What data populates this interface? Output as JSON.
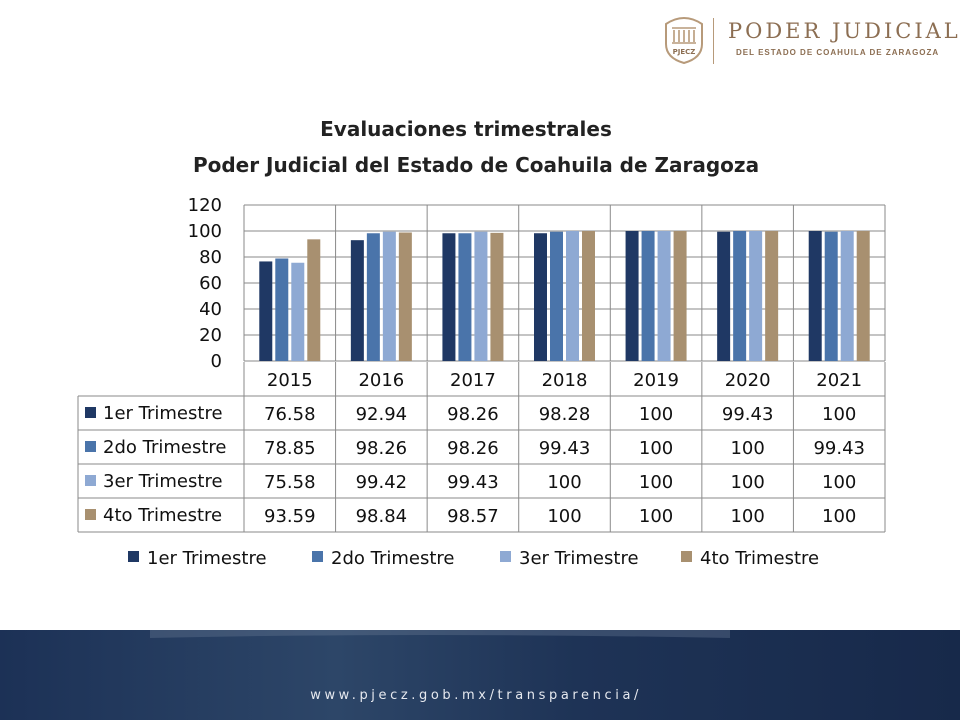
{
  "header": {
    "logo_seal_text": "PJECZ",
    "org_name": "PODER JUDICIAL",
    "org_subtitle": "DEL ESTADO DE COAHUILA DE ZARAGOZA"
  },
  "footer": {
    "url": "www.pjecz.gob.mx/transparencia/"
  },
  "colors": {
    "series": [
      "#1f3864",
      "#4a74aa",
      "#8ea9d3",
      "#a89070"
    ],
    "grid": "#888888",
    "footer_dark": "#1b2f52"
  },
  "chart_data": {
    "type": "bar",
    "title": "Evaluaciones trimestrales",
    "subtitle": "Poder Judicial del Estado de Coahuila de Zaragoza",
    "categories": [
      "2015",
      "2016",
      "2017",
      "2018",
      "2019",
      "2020",
      "2021"
    ],
    "series": [
      {
        "name": "1er Trimestre",
        "values": [
          76.58,
          92.94,
          98.26,
          98.28,
          100,
          99.43,
          100
        ],
        "labels": [
          "76.58",
          "92.94",
          "98.26",
          "98.28",
          "100",
          "99.43",
          "100"
        ]
      },
      {
        "name": "2do Trimestre",
        "values": [
          78.85,
          98.26,
          98.26,
          99.43,
          100,
          100,
          99.43
        ],
        "labels": [
          "78.85",
          "98.26",
          "98.26",
          "99.43",
          "100",
          "100",
          "99.43"
        ]
      },
      {
        "name": "3er Trimestre",
        "values": [
          75.58,
          99.42,
          99.43,
          100,
          100,
          100,
          100
        ],
        "labels": [
          "75.58",
          "99.42",
          "99.43",
          "100",
          "100",
          "100",
          "100"
        ]
      },
      {
        "name": "4to Trimestre",
        "values": [
          93.59,
          98.84,
          98.57,
          100,
          100,
          100,
          100
        ],
        "labels": [
          "93.59",
          "98.84",
          "98.57",
          "100",
          "100",
          "100",
          "100"
        ]
      }
    ],
    "yticks": [
      "0",
      "20",
      "40",
      "60",
      "80",
      "100",
      "120"
    ],
    "ylim": [
      0,
      120
    ],
    "grid": true,
    "data_table": true,
    "legend_position": "bottom"
  }
}
